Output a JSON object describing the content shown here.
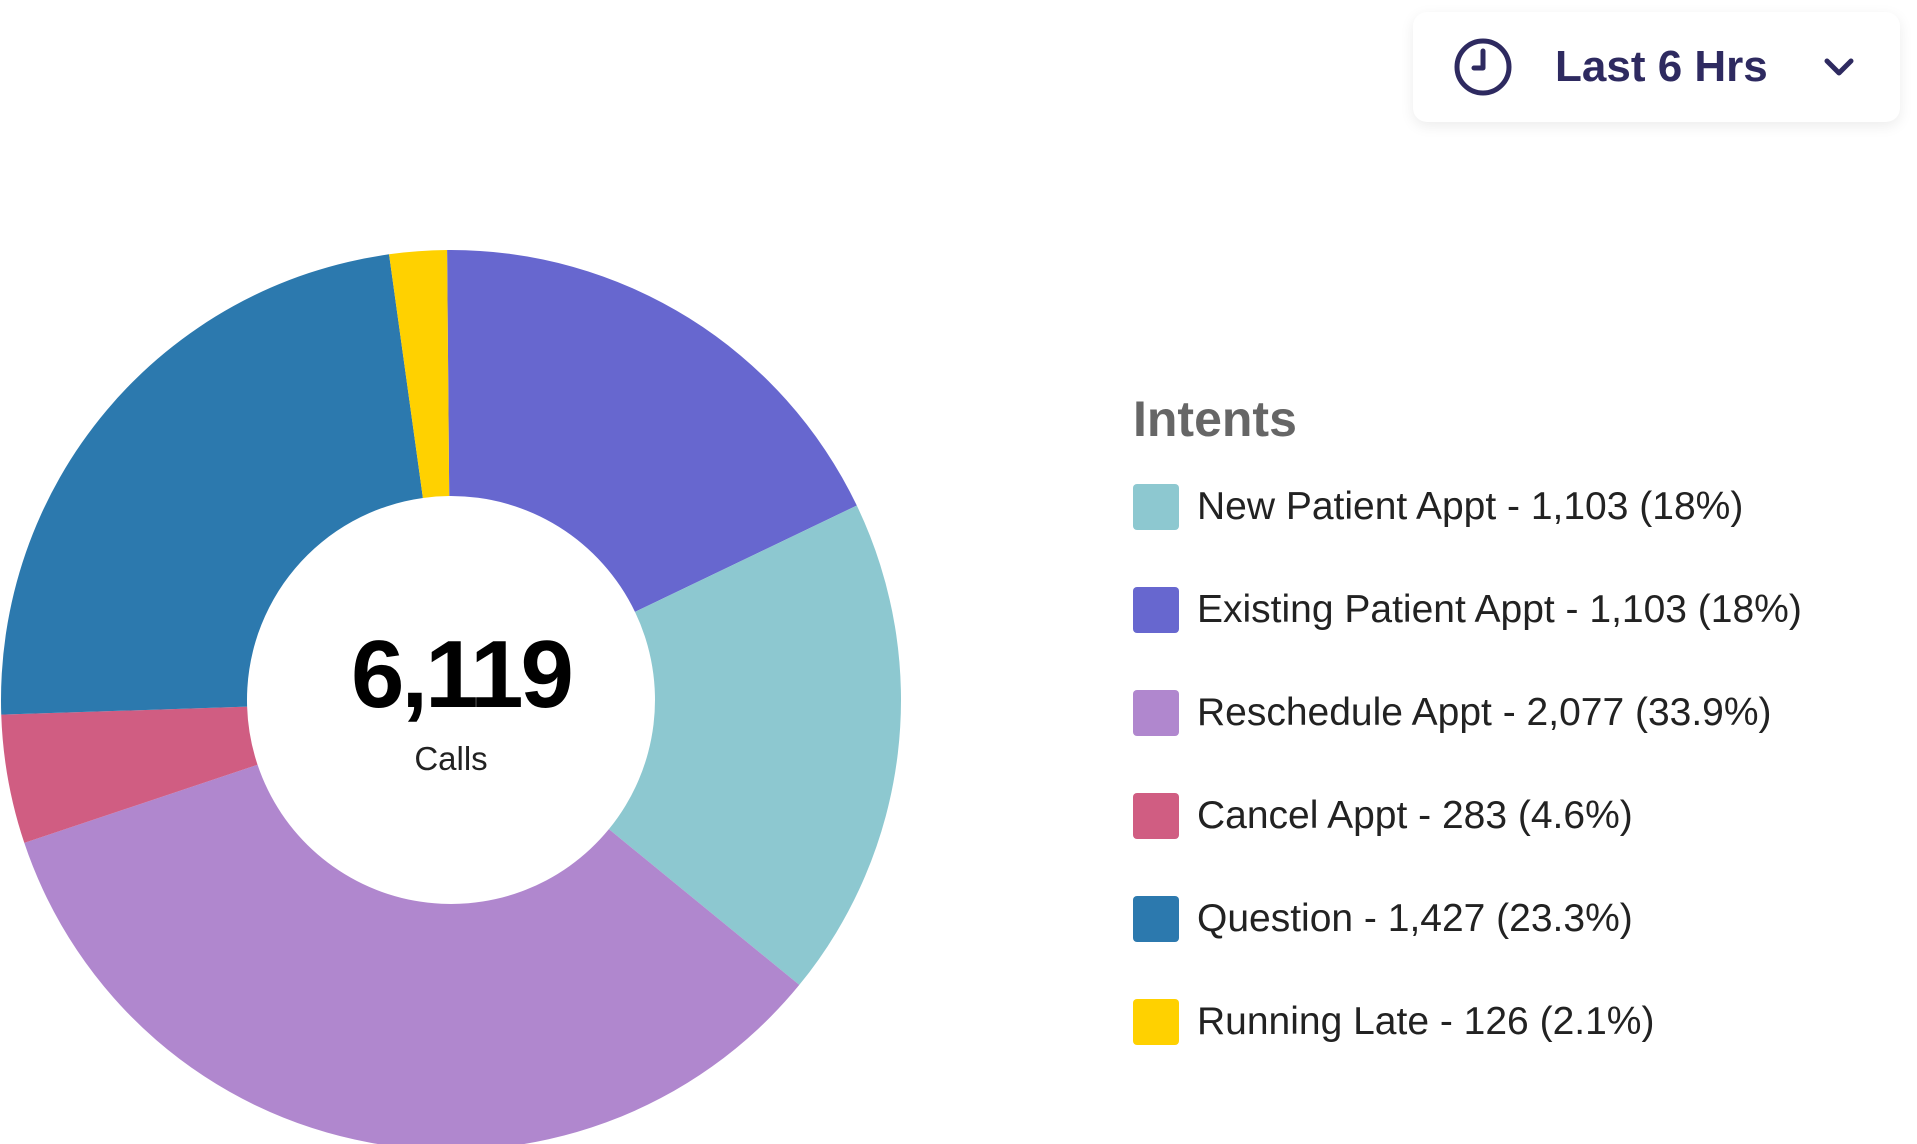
{
  "dropdown": {
    "label": "Last 6 Hrs",
    "icon": "clock-icon"
  },
  "chart_data": {
    "type": "pie",
    "variant": "donut",
    "title": "Intents",
    "center_value": "6,119",
    "center_label": "Calls",
    "legend_placement": "right",
    "slices": [
      {
        "name": "Existing Patient Appt",
        "value": 1103,
        "percent": 18,
        "color": "#6767cf",
        "label": "Existing Patient Appt - 1,103 (18%)"
      },
      {
        "name": "New Patient Appt",
        "value": 1103,
        "percent": 18,
        "color": "#8dc8d0",
        "label": "New Patient Appt - 1,103 (18%)"
      },
      {
        "name": "Reschedule Appt",
        "value": 2077,
        "percent": 33.9,
        "color": "#b087ce",
        "label": "Reschedule Appt - 2,077 (33.9%)"
      },
      {
        "name": "Cancel Appt",
        "value": 283,
        "percent": 4.6,
        "color": "#d05d82",
        "label": "Cancel Appt - 283 (4.6%)"
      },
      {
        "name": "Question",
        "value": 1427,
        "percent": 23.3,
        "color": "#2c79ae",
        "label": "Question - 1,427 (23.3%)"
      },
      {
        "name": "Running Late",
        "value": 126,
        "percent": 2.1,
        "color": "#ffd100",
        "label": "Running Late - 126 (2.1%)"
      }
    ],
    "legend_order": [
      "New Patient Appt",
      "Existing Patient Appt",
      "Reschedule Appt",
      "Cancel Appt",
      "Question",
      "Running Late"
    ]
  }
}
